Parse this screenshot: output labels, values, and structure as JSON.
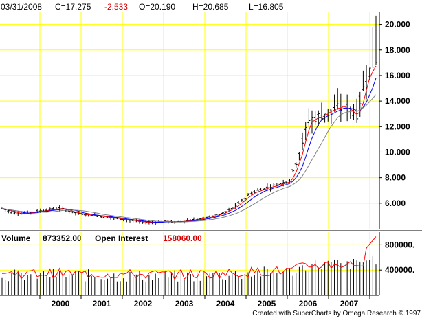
{
  "header": {
    "date": "03/31/2008",
    "close": "C=17.275",
    "change": "-2.533",
    "open": "O=20.190",
    "high": "H=20.685",
    "low": "L=16.805"
  },
  "volume_panel": {
    "volume_label": "Volume",
    "volume_value": "873352.00",
    "oi_label": "Open Interest",
    "oi_value": "158060.00"
  },
  "credit": "Created with SuperCharts by Omega Research © 1997",
  "colors": {
    "grid": "#ffff00",
    "bars": "#000000",
    "ma_fast": "#ff0000",
    "ma_medium": "#0000ff",
    "ma_slow": "#808080",
    "open_interest": "#ff0000"
  },
  "chart_data": [
    {
      "type": "ohlc",
      "x_ticks": [
        "2000",
        "2001",
        "2002",
        "2003",
        "2004",
        "2005",
        "2006",
        "2007"
      ],
      "y_ticks": [
        "6.000",
        "8.000",
        "10.000",
        "12.000",
        "14.000",
        "16.000",
        "18.000",
        "20.000"
      ],
      "ylim": [
        4.0,
        21.0
      ],
      "grid": true,
      "series": [
        {
          "name": "price",
          "kind": "monthly-bars",
          "values": [
            5.6,
            5.3,
            5.2,
            5.3,
            5.4,
            5.5,
            5.6,
            5.4,
            5.2,
            5.1,
            5.0,
            4.9,
            4.8,
            4.7,
            4.6,
            4.5,
            4.5,
            4.6,
            4.5,
            4.6,
            4.7,
            4.8,
            5.0,
            5.2,
            5.6,
            6.2,
            6.8,
            7.1,
            7.3,
            7.5,
            7.8,
            10.0,
            12.5,
            12.8,
            13.2,
            13.4,
            13.5,
            13.0,
            16.0,
            17.3
          ]
        },
        {
          "name": "ma_fast",
          "kind": "line"
        },
        {
          "name": "ma_medium",
          "kind": "line"
        },
        {
          "name": "ma_slow",
          "kind": "line"
        }
      ]
    },
    {
      "type": "bar",
      "y_ticks": [
        "400000.",
        "800000."
      ],
      "ylim": [
        0,
        1000000
      ],
      "grid": true,
      "series": [
        {
          "name": "volume",
          "kind": "bars"
        },
        {
          "name": "open_interest",
          "kind": "line"
        }
      ]
    }
  ]
}
